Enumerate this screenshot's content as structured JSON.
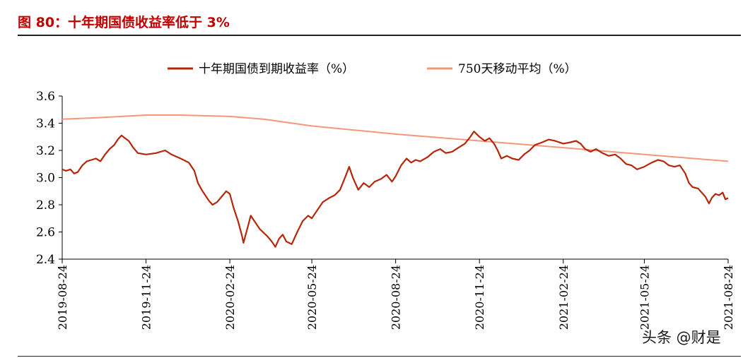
{
  "header": {
    "figure_title": "图 80：十年期国债收益率低于 3%"
  },
  "watermark": "头条 @财是",
  "colors": {
    "yield": "#b5260b",
    "ma": "#f4977b",
    "title": "#c00000",
    "axis": "#000000"
  },
  "chart_data": {
    "type": "line",
    "title": "",
    "xlabel": "",
    "ylabel": "",
    "ylim": [
      2.4,
      3.6
    ],
    "yticks": [
      "2.4",
      "2.6",
      "2.8",
      "3.0",
      "3.2",
      "3.4",
      "3.6"
    ],
    "xlim": [
      "2019-08-24",
      "2021-08-24"
    ],
    "xticks": [
      "2019-08-24",
      "2019-11-24",
      "2020-02-24",
      "2020-05-24",
      "2020-08-24",
      "2020-11-24",
      "2021-02-24",
      "2021-05-24",
      "2021-08-24"
    ],
    "grid": false,
    "legend": {
      "position": "top-center"
    },
    "series": [
      {
        "name": "十年期国债到期收益率（%）",
        "color": "#b5260b",
        "points": [
          [
            "2019-08-24",
            3.06
          ],
          [
            "2019-08-28",
            3.05
          ],
          [
            "2019-09-02",
            3.06
          ],
          [
            "2019-09-06",
            3.03
          ],
          [
            "2019-09-10",
            3.04
          ],
          [
            "2019-09-15",
            3.09
          ],
          [
            "2019-09-20",
            3.12
          ],
          [
            "2019-09-25",
            3.13
          ],
          [
            "2019-09-30",
            3.14
          ],
          [
            "2019-10-05",
            3.12
          ],
          [
            "2019-10-10",
            3.17
          ],
          [
            "2019-10-15",
            3.21
          ],
          [
            "2019-10-20",
            3.24
          ],
          [
            "2019-10-24",
            3.28
          ],
          [
            "2019-10-28",
            3.31
          ],
          [
            "2019-11-01",
            3.29
          ],
          [
            "2019-11-05",
            3.27
          ],
          [
            "2019-11-10",
            3.22
          ],
          [
            "2019-11-15",
            3.18
          ],
          [
            "2019-11-24",
            3.17
          ],
          [
            "2019-12-05",
            3.18
          ],
          [
            "2019-12-15",
            3.2
          ],
          [
            "2019-12-22",
            3.17
          ],
          [
            "2020-01-01",
            3.14
          ],
          [
            "2020-01-10",
            3.11
          ],
          [
            "2020-01-16",
            3.05
          ],
          [
            "2020-01-20",
            2.96
          ],
          [
            "2020-01-25",
            2.9
          ],
          [
            "2020-02-01",
            2.83
          ],
          [
            "2020-02-05",
            2.8
          ],
          [
            "2020-02-10",
            2.82
          ],
          [
            "2020-02-15",
            2.86
          ],
          [
            "2020-02-20",
            2.9
          ],
          [
            "2020-02-24",
            2.88
          ],
          [
            "2020-02-28",
            2.78
          ],
          [
            "2020-03-04",
            2.68
          ],
          [
            "2020-03-08",
            2.58
          ],
          [
            "2020-03-10",
            2.52
          ],
          [
            "2020-03-14",
            2.62
          ],
          [
            "2020-03-18",
            2.72
          ],
          [
            "2020-03-22",
            2.68
          ],
          [
            "2020-03-28",
            2.62
          ],
          [
            "2020-04-05",
            2.57
          ],
          [
            "2020-04-10",
            2.53
          ],
          [
            "2020-04-14",
            2.49
          ],
          [
            "2020-04-18",
            2.55
          ],
          [
            "2020-04-22",
            2.58
          ],
          [
            "2020-04-26",
            2.53
          ],
          [
            "2020-05-02",
            2.51
          ],
          [
            "2020-05-08",
            2.6
          ],
          [
            "2020-05-14",
            2.68
          ],
          [
            "2020-05-20",
            2.72
          ],
          [
            "2020-05-24",
            2.7
          ],
          [
            "2020-05-30",
            2.76
          ],
          [
            "2020-06-05",
            2.82
          ],
          [
            "2020-06-12",
            2.85
          ],
          [
            "2020-06-18",
            2.87
          ],
          [
            "2020-06-24",
            2.91
          ],
          [
            "2020-06-30",
            3.01
          ],
          [
            "2020-07-04",
            3.08
          ],
          [
            "2020-07-08",
            3.0
          ],
          [
            "2020-07-14",
            2.91
          ],
          [
            "2020-07-20",
            2.96
          ],
          [
            "2020-07-26",
            2.93
          ],
          [
            "2020-08-01",
            2.97
          ],
          [
            "2020-08-08",
            2.99
          ],
          [
            "2020-08-14",
            3.02
          ],
          [
            "2020-08-20",
            2.97
          ],
          [
            "2020-08-24",
            3.01
          ],
          [
            "2020-08-30",
            3.09
          ],
          [
            "2020-09-05",
            3.14
          ],
          [
            "2020-09-10",
            3.11
          ],
          [
            "2020-09-15",
            3.13
          ],
          [
            "2020-09-20",
            3.12
          ],
          [
            "2020-09-28",
            3.15
          ],
          [
            "2020-10-05",
            3.19
          ],
          [
            "2020-10-12",
            3.21
          ],
          [
            "2020-10-18",
            3.18
          ],
          [
            "2020-10-25",
            3.19
          ],
          [
            "2020-11-01",
            3.22
          ],
          [
            "2020-11-08",
            3.25
          ],
          [
            "2020-11-14",
            3.3
          ],
          [
            "2020-11-18",
            3.34
          ],
          [
            "2020-11-24",
            3.3
          ],
          [
            "2020-11-30",
            3.27
          ],
          [
            "2020-12-05",
            3.29
          ],
          [
            "2020-12-10",
            3.25
          ],
          [
            "2020-12-14",
            3.2
          ],
          [
            "2020-12-18",
            3.14
          ],
          [
            "2020-12-24",
            3.16
          ],
          [
            "2020-12-30",
            3.14
          ],
          [
            "2021-01-06",
            3.13
          ],
          [
            "2021-01-12",
            3.17
          ],
          [
            "2021-01-18",
            3.2
          ],
          [
            "2021-01-24",
            3.24
          ],
          [
            "2021-02-01",
            3.26
          ],
          [
            "2021-02-08",
            3.28
          ],
          [
            "2021-02-15",
            3.27
          ],
          [
            "2021-02-24",
            3.25
          ],
          [
            "2021-03-04",
            3.26
          ],
          [
            "2021-03-10",
            3.27
          ],
          [
            "2021-03-15",
            3.25
          ],
          [
            "2021-03-20",
            3.21
          ],
          [
            "2021-03-26",
            3.19
          ],
          [
            "2021-04-01",
            3.21
          ],
          [
            "2021-04-08",
            3.18
          ],
          [
            "2021-04-15",
            3.16
          ],
          [
            "2021-04-22",
            3.17
          ],
          [
            "2021-04-28",
            3.14
          ],
          [
            "2021-05-04",
            3.1
          ],
          [
            "2021-05-10",
            3.09
          ],
          [
            "2021-05-16",
            3.06
          ],
          [
            "2021-05-24",
            3.08
          ],
          [
            "2021-06-01",
            3.11
          ],
          [
            "2021-06-08",
            3.13
          ],
          [
            "2021-06-14",
            3.12
          ],
          [
            "2021-06-20",
            3.09
          ],
          [
            "2021-06-26",
            3.08
          ],
          [
            "2021-07-02",
            3.09
          ],
          [
            "2021-07-08",
            3.03
          ],
          [
            "2021-07-12",
            2.96
          ],
          [
            "2021-07-16",
            2.93
          ],
          [
            "2021-07-22",
            2.92
          ],
          [
            "2021-07-26",
            2.89
          ],
          [
            "2021-07-30",
            2.86
          ],
          [
            "2021-08-03",
            2.81
          ],
          [
            "2021-08-06",
            2.85
          ],
          [
            "2021-08-10",
            2.88
          ],
          [
            "2021-08-14",
            2.87
          ],
          [
            "2021-08-18",
            2.89
          ],
          [
            "2021-08-21",
            2.84
          ],
          [
            "2021-08-24",
            2.85
          ]
        ]
      },
      {
        "name": "750天移动平均（%）",
        "color": "#f4977b",
        "points": [
          [
            "2019-08-24",
            3.43
          ],
          [
            "2019-10-01",
            3.44
          ],
          [
            "2019-11-24",
            3.46
          ],
          [
            "2020-01-01",
            3.46
          ],
          [
            "2020-02-24",
            3.45
          ],
          [
            "2020-04-01",
            3.43
          ],
          [
            "2020-05-24",
            3.38
          ],
          [
            "2020-08-24",
            3.32
          ],
          [
            "2020-11-24",
            3.27
          ],
          [
            "2021-02-24",
            3.22
          ],
          [
            "2021-05-24",
            3.17
          ],
          [
            "2021-08-24",
            3.12
          ]
        ]
      }
    ]
  }
}
